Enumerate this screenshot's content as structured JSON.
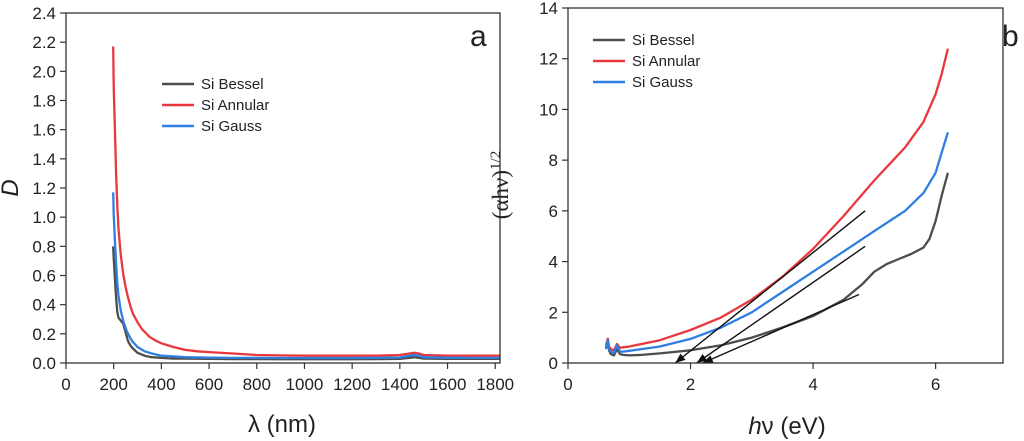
{
  "chart_data": [
    {
      "type": "line",
      "panel_label": "a",
      "xlabel": "λ (nm)",
      "ylabel": "D",
      "xlim": [
        0,
        1820
      ],
      "ylim": [
        0,
        2.4
      ],
      "xticks": [
        0,
        200,
        400,
        600,
        800,
        1000,
        1200,
        1400,
        1600,
        1800
      ],
      "yticks": [
        0.0,
        0.2,
        0.4,
        0.6,
        0.8,
        1.0,
        1.2,
        1.4,
        1.6,
        1.8,
        2.0,
        2.2,
        2.4
      ],
      "legend_position": "upper-center",
      "series": [
        {
          "name": "Si Bessel",
          "color": "#4d4d4d",
          "x": [
            198,
            200,
            205,
            210,
            215,
            220,
            230,
            240,
            250,
            260,
            270,
            280,
            300,
            330,
            360,
            400,
            450,
            500,
            600,
            700,
            800,
            900,
            1000,
            1100,
            1200,
            1300,
            1400,
            1440,
            1460,
            1480,
            1500,
            1600,
            1700,
            1820
          ],
          "y": [
            0.8,
            0.72,
            0.58,
            0.45,
            0.35,
            0.31,
            0.29,
            0.27,
            0.21,
            0.15,
            0.12,
            0.1,
            0.07,
            0.05,
            0.04,
            0.035,
            0.03,
            0.03,
            0.028,
            0.027,
            0.027,
            0.026,
            0.026,
            0.026,
            0.026,
            0.027,
            0.028,
            0.035,
            0.04,
            0.035,
            0.03,
            0.028,
            0.028,
            0.028
          ]
        },
        {
          "name": "Si Annular",
          "color": "#e8383d",
          "x": [
            198,
            200,
            205,
            210,
            215,
            220,
            230,
            240,
            250,
            260,
            270,
            280,
            300,
            320,
            350,
            380,
            400,
            450,
            500,
            550,
            600,
            700,
            800,
            900,
            1000,
            1100,
            1200,
            1300,
            1400,
            1440,
            1460,
            1480,
            1500,
            1600,
            1700,
            1820
          ],
          "y": [
            2.17,
            1.9,
            1.6,
            1.3,
            1.08,
            0.92,
            0.74,
            0.61,
            0.52,
            0.45,
            0.39,
            0.34,
            0.28,
            0.23,
            0.18,
            0.15,
            0.135,
            0.11,
            0.09,
            0.08,
            0.075,
            0.065,
            0.055,
            0.052,
            0.05,
            0.05,
            0.05,
            0.05,
            0.055,
            0.065,
            0.07,
            0.065,
            0.055,
            0.05,
            0.05,
            0.05
          ]
        },
        {
          "name": "Si Gauss",
          "color": "#2f7fe0",
          "x": [
            198,
            200,
            205,
            210,
            215,
            220,
            230,
            240,
            250,
            260,
            270,
            280,
            300,
            330,
            360,
            400,
            450,
            500,
            600,
            700,
            800,
            900,
            1000,
            1100,
            1200,
            1300,
            1400,
            1440,
            1460,
            1480,
            1500,
            1600,
            1700,
            1820
          ],
          "y": [
            1.17,
            1.02,
            0.84,
            0.68,
            0.55,
            0.46,
            0.36,
            0.29,
            0.24,
            0.2,
            0.17,
            0.145,
            0.11,
            0.08,
            0.065,
            0.05,
            0.045,
            0.04,
            0.037,
            0.035,
            0.035,
            0.034,
            0.034,
            0.034,
            0.034,
            0.035,
            0.038,
            0.05,
            0.055,
            0.05,
            0.04,
            0.036,
            0.035,
            0.035
          ]
        }
      ]
    },
    {
      "type": "line",
      "panel_label": "b",
      "xlabel_italic": "h",
      "xlabel_rest": "ν (eV)",
      "ylabel": "(αhν)",
      "ylabel_sup": "1/2",
      "xlim": [
        0,
        7.1
      ],
      "ylim": [
        0,
        14
      ],
      "xticks": [
        0,
        2,
        4,
        6
      ],
      "yticks": [
        0,
        2,
        4,
        6,
        8,
        10,
        12,
        14
      ],
      "legend_position": "upper-left",
      "series": [
        {
          "name": "Si Bessel",
          "color": "#4d4d4d",
          "x": [
            0.62,
            0.65,
            0.67,
            0.7,
            0.75,
            0.8,
            0.85,
            0.9,
            1.0,
            1.2,
            1.5,
            2.0,
            2.5,
            3.0,
            3.5,
            4.0,
            4.5,
            4.8,
            5.0,
            5.2,
            5.4,
            5.6,
            5.8,
            5.9,
            6.0,
            6.1,
            6.2
          ],
          "y": [
            0.6,
            0.95,
            0.5,
            0.35,
            0.3,
            0.55,
            0.35,
            0.32,
            0.3,
            0.32,
            0.38,
            0.5,
            0.7,
            1.0,
            1.4,
            1.85,
            2.5,
            3.1,
            3.6,
            3.9,
            4.1,
            4.3,
            4.55,
            4.9,
            5.6,
            6.6,
            7.5
          ]
        },
        {
          "name": "Si Annular",
          "color": "#e8383d",
          "x": [
            0.62,
            0.65,
            0.67,
            0.7,
            0.75,
            0.8,
            0.85,
            0.9,
            1.0,
            1.2,
            1.5,
            2.0,
            2.5,
            3.0,
            3.5,
            4.0,
            4.5,
            5.0,
            5.5,
            5.8,
            6.0,
            6.1,
            6.2
          ],
          "y": [
            0.7,
            0.95,
            0.65,
            0.55,
            0.5,
            0.75,
            0.6,
            0.62,
            0.65,
            0.75,
            0.9,
            1.3,
            1.8,
            2.5,
            3.4,
            4.5,
            5.8,
            7.2,
            8.5,
            9.5,
            10.6,
            11.4,
            12.4
          ]
        },
        {
          "name": "Si Gauss",
          "color": "#2f7fe0",
          "x": [
            0.62,
            0.65,
            0.67,
            0.7,
            0.75,
            0.8,
            0.85,
            0.9,
            1.0,
            1.2,
            1.5,
            2.0,
            2.5,
            3.0,
            3.5,
            4.0,
            4.5,
            5.0,
            5.5,
            5.8,
            6.0,
            6.1,
            6.2
          ],
          "y": [
            0.55,
            0.9,
            0.55,
            0.45,
            0.4,
            0.7,
            0.45,
            0.45,
            0.48,
            0.55,
            0.65,
            0.95,
            1.4,
            2.0,
            2.8,
            3.6,
            4.4,
            5.2,
            6.0,
            6.7,
            7.5,
            8.3,
            9.1
          ]
        }
      ],
      "tangent_lines": [
        {
          "x": [
            1.75,
            4.85
          ],
          "y": [
            0.0,
            6.0
          ]
        },
        {
          "x": [
            2.1,
            4.85
          ],
          "y": [
            0.0,
            4.6
          ]
        },
        {
          "x": [
            2.2,
            4.75
          ],
          "y": [
            0.0,
            2.7
          ]
        }
      ]
    }
  ]
}
